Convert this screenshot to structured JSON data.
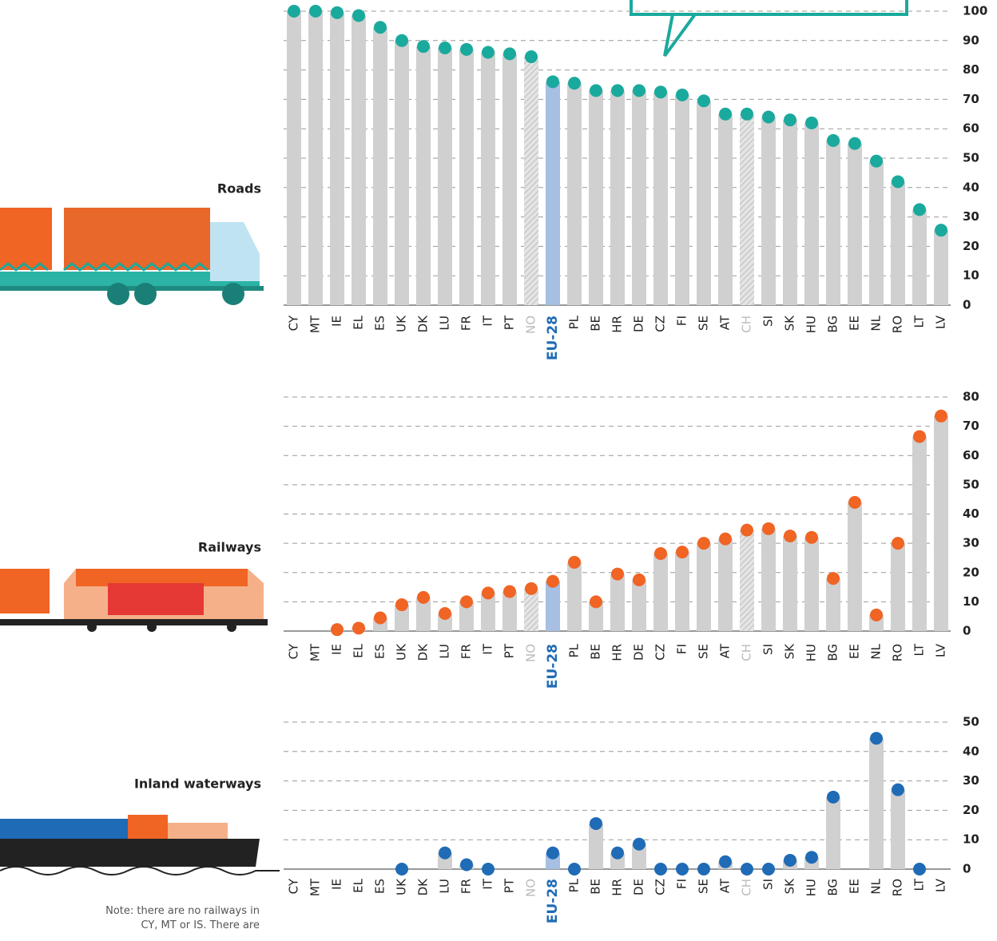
{
  "chart_data": [
    {
      "type": "bar",
      "title": "Roads",
      "color": "#1aa99d",
      "highlight": 12,
      "highlight_color": "#a6bfe3",
      "hatched": [
        11,
        21
      ],
      "bar_color": "#d0d0d0",
      "grid": true,
      "categories": [
        "CY",
        "MT",
        "IE",
        "EL",
        "ES",
        "UK",
        "DK",
        "LU",
        "FR",
        "IT",
        "PT",
        "NO",
        "EU-28",
        "PL",
        "BE",
        "HR",
        "DE",
        "CZ",
        "FI",
        "SE",
        "AT",
        "CH",
        "SI",
        "SK",
        "HU",
        "BG",
        "EE",
        "NL",
        "RO",
        "LT",
        "LV"
      ],
      "values": [
        100,
        100,
        99.5,
        98.5,
        94.5,
        90,
        88,
        87.5,
        87,
        86,
        85.5,
        84.5,
        76,
        75.5,
        73,
        73,
        73,
        72.5,
        71.5,
        69.5,
        65,
        65,
        64,
        63,
        62,
        56,
        55,
        49,
        42,
        32.5,
        25.5
      ],
      "ylim": [
        0,
        100
      ],
      "yticks": [
        0,
        10,
        20,
        30,
        40,
        50,
        60,
        70,
        80,
        90,
        100
      ]
    },
    {
      "type": "bar",
      "title": "Railways",
      "color": "#f06424",
      "highlight": 12,
      "highlight_color": "#a6bfe3",
      "hatched": [
        11,
        21
      ],
      "bar_color": "#d0d0d0",
      "grid": true,
      "categories": [
        "CY",
        "MT",
        "IE",
        "EL",
        "ES",
        "UK",
        "DK",
        "LU",
        "FR",
        "IT",
        "PT",
        "NO",
        "EU-28",
        "PL",
        "BE",
        "HR",
        "DE",
        "CZ",
        "FI",
        "SE",
        "AT",
        "CH",
        "SI",
        "SK",
        "HU",
        "BG",
        "EE",
        "NL",
        "RO",
        "LT",
        "LV"
      ],
      "values": [
        null,
        null,
        0.5,
        1,
        4.5,
        9,
        11.5,
        6,
        10,
        13,
        13.5,
        14.5,
        17,
        23.5,
        10,
        19.5,
        17.5,
        26.5,
        27,
        30,
        31.5,
        34.5,
        35,
        32.5,
        32,
        18,
        44,
        5.5,
        30,
        66.5,
        73.5
      ],
      "ylim": [
        0,
        80
      ],
      "yticks": [
        0,
        10,
        20,
        30,
        40,
        50,
        60,
        70,
        80
      ]
    },
    {
      "type": "bar",
      "title": "Inland waterways",
      "color": "#1f6bb5",
      "highlight": 12,
      "highlight_color": "#a6bfe3",
      "hatched": [
        11,
        21
      ],
      "bar_color": "#d0d0d0",
      "grid": true,
      "categories": [
        "CY",
        "MT",
        "IE",
        "EL",
        "ES",
        "UK",
        "DK",
        "LU",
        "FR",
        "IT",
        "PT",
        "NO",
        "EU-28",
        "PL",
        "BE",
        "HR",
        "DE",
        "CZ",
        "FI",
        "SE",
        "AT",
        "CH",
        "SI",
        "SK",
        "HU",
        "BG",
        "EE",
        "NL",
        "RO",
        "LT",
        "LV"
      ],
      "values": [
        null,
        null,
        null,
        null,
        null,
        0,
        null,
        5.5,
        1.5,
        0,
        null,
        null,
        5.5,
        0,
        15.5,
        5.5,
        8.5,
        0,
        0,
        0,
        2.5,
        0,
        0,
        3,
        4,
        24.5,
        null,
        44.5,
        27,
        0,
        null
      ],
      "ylim": [
        0,
        50
      ],
      "yticks": [
        0,
        10,
        20,
        30,
        40,
        50
      ]
    }
  ],
  "note": "Note: there are no railways in CY, MT or IS. There are"
}
